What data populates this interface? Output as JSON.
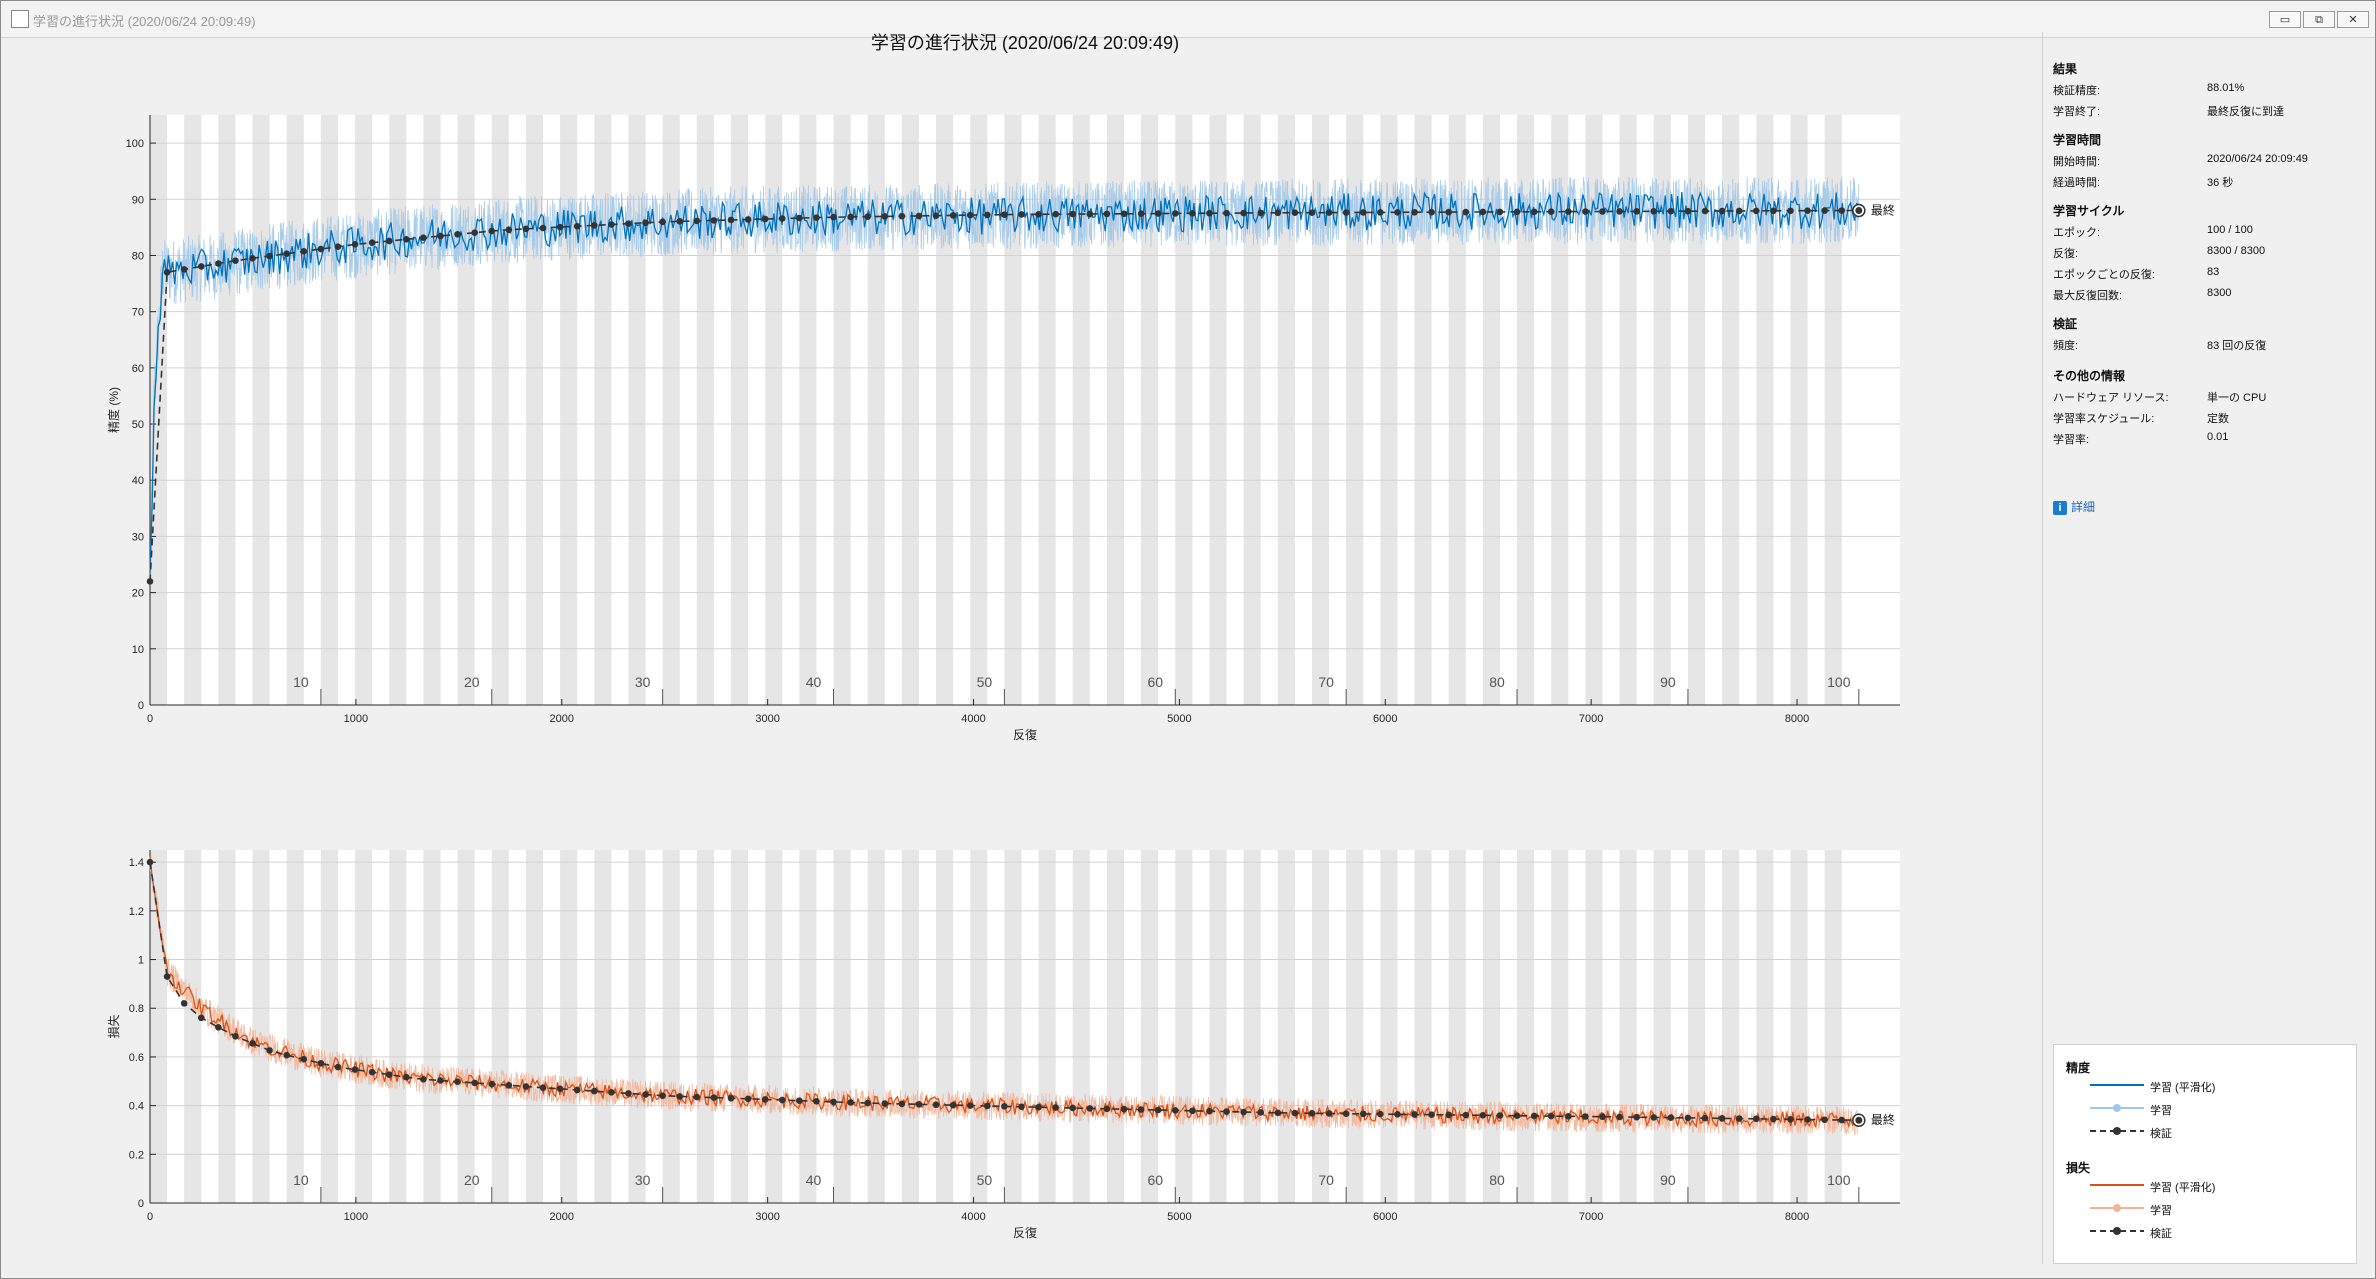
{
  "window": {
    "title": "学習の進行状況 (2020/06/24 20:09:49)",
    "buttons": [
      "▭",
      "⧉",
      "✕"
    ]
  },
  "figure_title": "学習の進行状況 (2020/06/24 20:09:49)",
  "info_panel": {
    "sections": [
      {
        "heading": "結果",
        "rows": [
          {
            "key": "検証精度:",
            "value": "88.01%"
          },
          {
            "key": "学習終了:",
            "value": "最終反復に到達"
          }
        ]
      },
      {
        "heading": "学習時間",
        "rows": [
          {
            "key": "開始時間:",
            "value": "2020/06/24 20:09:49"
          },
          {
            "key": "経過時間:",
            "value": "36 秒"
          }
        ]
      },
      {
        "heading": "学習サイクル",
        "rows": [
          {
            "key": "エポック:",
            "value": "100 / 100"
          },
          {
            "key": "反復:",
            "value": "8300 / 8300"
          },
          {
            "key": "エポックごとの反復:",
            "value": "83"
          },
          {
            "key": "最大反復回数:",
            "value": "8300"
          }
        ]
      },
      {
        "heading": "検証",
        "rows": [
          {
            "key": "頻度:",
            "value": "83 回の反復"
          }
        ]
      },
      {
        "heading": "その他の情報",
        "rows": [
          {
            "key": "ハードウェア リソース:",
            "value": "単一の CPU"
          },
          {
            "key": "学習率スケジュール:",
            "value": "定数"
          },
          {
            "key": "学習率:",
            "value": "0.01"
          }
        ]
      }
    ],
    "details_link": "詳細"
  },
  "legend": {
    "groups": [
      {
        "heading": "精度",
        "items": [
          "学習 (平滑化)",
          "学習",
          "検証"
        ]
      },
      {
        "heading": "損失",
        "items": [
          "学習 (平滑化)",
          "学習",
          "検証"
        ]
      }
    ]
  },
  "colors": {
    "accuracy": "#0072bd",
    "accuracy_light": "#9fc7e8",
    "loss": "#d95319",
    "loss_light": "#f2b497",
    "validation": "#333333",
    "epoch_band": "#e6e6e6"
  },
  "final_label": "最終",
  "chart_data": [
    {
      "type": "line",
      "ylabel": "精度 (%)",
      "xlabel": "反復",
      "xlim": [
        0,
        8500
      ],
      "ylim": [
        0,
        105
      ],
      "xticks": [
        0,
        1000,
        2000,
        3000,
        4000,
        5000,
        6000,
        7000,
        8000
      ],
      "yticks": [
        0,
        10,
        20,
        30,
        40,
        50,
        60,
        70,
        80,
        90,
        100
      ],
      "epoch_labels": [
        10,
        20,
        30,
        40,
        50,
        60,
        70,
        80,
        90,
        100
      ],
      "iterations_per_epoch": 83,
      "grid": true,
      "series": [
        {
          "name": "学習 (平滑化)",
          "curve": [
            [
              0,
              22
            ],
            [
              20,
              55
            ],
            [
              60,
              77
            ],
            [
              300,
              78
            ],
            [
              800,
              81
            ],
            [
              1500,
              84
            ],
            [
              2200,
              85.5
            ],
            [
              3000,
              86.5
            ],
            [
              4000,
              87
            ],
            [
              5000,
              87.5
            ],
            [
              6000,
              87.8
            ],
            [
              7000,
              88
            ],
            [
              8300,
              88
            ]
          ]
        },
        {
          "name": "学習",
          "noise_amplitude": 6
        },
        {
          "name": "検証",
          "every_iterations": 83,
          "curve": [
            [
              0,
              22
            ],
            [
              83,
              77
            ],
            [
              400,
              79
            ],
            [
              1000,
              82
            ],
            [
              1700,
              84.5
            ],
            [
              2500,
              86
            ],
            [
              3300,
              86.8
            ],
            [
              4200,
              87.3
            ],
            [
              5500,
              87.6
            ],
            [
              8300,
              88.01
            ]
          ],
          "final_value": 88.01
        }
      ]
    },
    {
      "type": "line",
      "ylabel": "損失",
      "xlabel": "反復",
      "xlim": [
        0,
        8500
      ],
      "ylim": [
        0,
        1.45
      ],
      "xticks": [
        0,
        1000,
        2000,
        3000,
        4000,
        5000,
        6000,
        7000,
        8000
      ],
      "yticks": [
        0,
        0.2,
        0.4,
        0.6,
        0.8,
        1,
        1.2,
        1.4
      ],
      "epoch_labels": [
        10,
        20,
        30,
        40,
        50,
        60,
        70,
        80,
        90,
        100
      ],
      "iterations_per_epoch": 83,
      "grid": true,
      "series": [
        {
          "name": "学習 (平滑化)",
          "curve": [
            [
              0,
              1.4
            ],
            [
              83,
              0.95
            ],
            [
              250,
              0.8
            ],
            [
              500,
              0.66
            ],
            [
              800,
              0.58
            ],
            [
              1200,
              0.52
            ],
            [
              1800,
              0.48
            ],
            [
              2500,
              0.44
            ],
            [
              3500,
              0.41
            ],
            [
              4500,
              0.39
            ],
            [
              5500,
              0.37
            ],
            [
              7000,
              0.35
            ],
            [
              8300,
              0.34
            ]
          ]
        },
        {
          "name": "学習",
          "noise_amplitude": 0.06
        },
        {
          "name": "検証",
          "every_iterations": 83,
          "curve": [
            [
              0,
              1.4
            ],
            [
              83,
              0.93
            ],
            [
              166,
              0.82
            ],
            [
              250,
              0.76
            ],
            [
              400,
              0.69
            ],
            [
              600,
              0.62
            ],
            [
              900,
              0.56
            ],
            [
              1300,
              0.51
            ],
            [
              1800,
              0.48
            ],
            [
              2500,
              0.44
            ],
            [
              3500,
              0.41
            ],
            [
              4500,
              0.39
            ],
            [
              5500,
              0.37
            ],
            [
              7000,
              0.355
            ],
            [
              8300,
              0.34
            ]
          ],
          "final_value": 0.34
        }
      ]
    }
  ]
}
